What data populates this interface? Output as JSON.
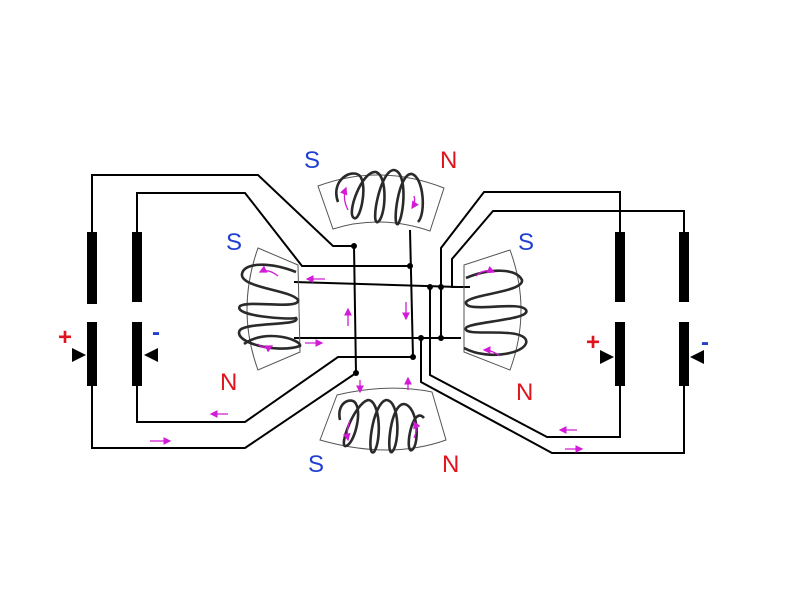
{
  "colors": {
    "south_pole": "#1f3fd1",
    "north_pole": "#e0141e",
    "positive": "#e0141e",
    "negative": "#1f3fd1",
    "current_arrow": "#d31ad6"
  },
  "poles": {
    "top_left": "S",
    "top_right": "N",
    "left_top": "S",
    "left_bottom": "N",
    "right_top": "S",
    "right_bottom": "N",
    "bottom_left": "S",
    "bottom_right": "N"
  },
  "batteries": {
    "left_positive": "+",
    "left_negative": "-",
    "right_positive": "+",
    "right_negative": "-"
  },
  "elements": {
    "core": "core-outline",
    "coil": "coil-icon",
    "arrow": "current-arrow-icon",
    "junction": "junction-dot"
  }
}
